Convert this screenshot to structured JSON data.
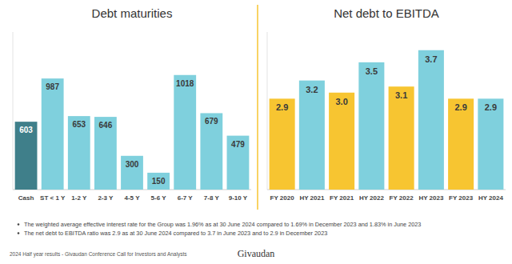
{
  "chart_data": [
    {
      "type": "bar",
      "title": "Debt maturities",
      "categories": [
        "Cash",
        "ST < 1 Y",
        "1-2 Y",
        "2-3 Y",
        "4-5 Y",
        "5-6 Y",
        "6-7 Y",
        "7-8 Y",
        "9-10 Y"
      ],
      "values": [
        603,
        987,
        653,
        646,
        300,
        150,
        1018,
        679,
        479
      ],
      "colors": [
        "#3f7f8a",
        "#7fd0dd",
        "#7fd0dd",
        "#7fd0dd",
        "#7fd0dd",
        "#7fd0dd",
        "#7fd0dd",
        "#7fd0dd",
        "#7fd0dd"
      ],
      "ylim": [
        0,
        1400
      ],
      "data_labels": true,
      "tick_labels": false
    },
    {
      "type": "bar",
      "title": "Net debt to EBITDA",
      "categories": [
        "FY 2020",
        "HY 2021",
        "FY 2021",
        "HY 2022",
        "FY 2022",
        "HY 2023",
        "FY 2023",
        "HY 2024"
      ],
      "values": [
        2.9,
        3.2,
        3.0,
        3.5,
        3.1,
        3.7,
        2.9,
        2.9
      ],
      "value_labels": [
        "2.9",
        "3.2",
        "3.0",
        "3.5",
        "3.1",
        "3.7",
        "2.9",
        "2.9"
      ],
      "colors": [
        "#f7c531",
        "#7fd0dd",
        "#f7c531",
        "#7fd0dd",
        "#f7c531",
        "#7fd0dd",
        "#f7c531",
        "#7fd0dd"
      ],
      "ylim": [
        1.4,
        4.0
      ],
      "data_labels": true,
      "tick_labels": false
    }
  ],
  "notes": [
    "The weighted average effective interest rate for the Group was 1.96% as at 30 June 2024 compared to 1.69% in December 2023 and 1.83% in June 2023",
    "The net debt to EBITDA ratio was 2.9 as at 30 June 2024 compared to 3.7 in June 2023 and to 2.9 in December 2023"
  ],
  "footer": {
    "text": "2024 Half year results - Givaudan Conference Call for Investors and Analysts",
    "logo": "Givaudan"
  }
}
